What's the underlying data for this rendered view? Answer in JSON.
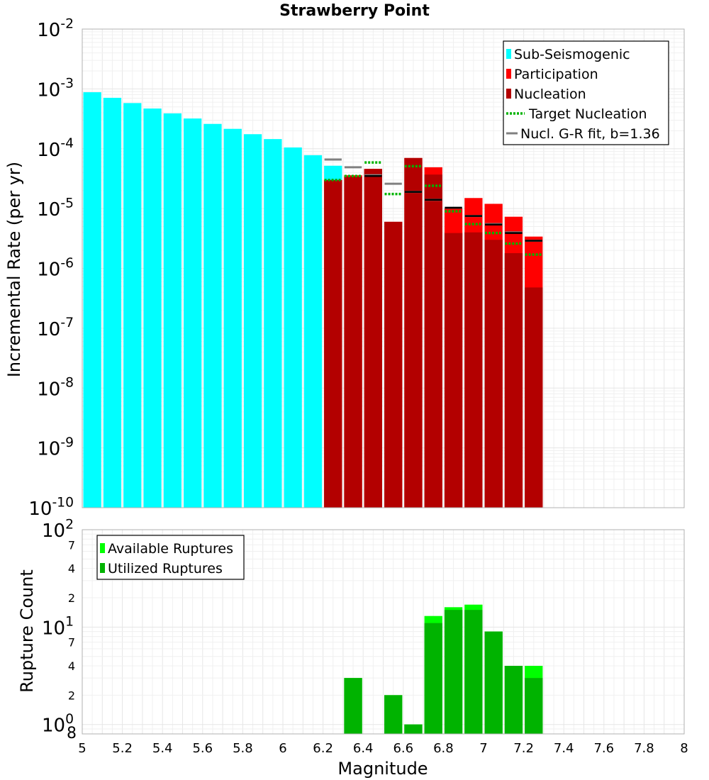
{
  "chart_data": [
    {
      "type": "bar",
      "title": "Strawberry Point",
      "xlabel": "",
      "ylabel": "Incremental Rate (per yr)",
      "yscale": "log",
      "ylim": [
        1e-10,
        0.01
      ],
      "xlim": [
        5,
        8
      ],
      "y_ticks": [
        {
          "base": "10",
          "exp": "-10"
        },
        {
          "base": "10",
          "exp": "-9"
        },
        {
          "base": "10",
          "exp": "-8"
        },
        {
          "base": "10",
          "exp": "-7"
        },
        {
          "base": "10",
          "exp": "-6"
        },
        {
          "base": "10",
          "exp": "-5"
        },
        {
          "base": "10",
          "exp": "-4"
        },
        {
          "base": "10",
          "exp": "-3"
        },
        {
          "base": "10",
          "exp": "-2"
        }
      ],
      "bin_width": 0.1,
      "colors": {
        "sub_seismogenic": "#00ffff",
        "participation": "#ff0000",
        "nucleation": "#b30000",
        "target_nucleation": "#00b300",
        "gr_fit": "#808080",
        "nucleation_marker": "#000000"
      },
      "legend": [
        {
          "label": "Sub-Seismogenic",
          "kind": "bar",
          "color": "#00ffff"
        },
        {
          "label": "Participation",
          "kind": "bar",
          "color": "#ff0000"
        },
        {
          "label": "Nucleation",
          "kind": "bar",
          "color": "#b30000"
        },
        {
          "label": "Target Nucleation",
          "kind": "dotted",
          "color": "#00b300"
        },
        {
          "label": "Nucl. G-R fit, b=1.36",
          "kind": "line",
          "color": "#808080"
        }
      ],
      "series": [
        {
          "name": "Sub-Seismogenic",
          "x": [
            5.05,
            5.15,
            5.25,
            5.35,
            5.45,
            5.55,
            5.65,
            5.75,
            5.85,
            5.95,
            6.05,
            6.15,
            6.25
          ],
          "values": [
            0.00088,
            0.00071,
            0.00058,
            0.00047,
            0.00039,
            0.00032,
            0.00026,
            0.000215,
            0.000175,
            0.000145,
            0.000105,
            7.8e-05,
            5.2e-05
          ]
        },
        {
          "name": "Participation",
          "x": [
            6.25,
            6.35,
            6.45,
            6.55,
            6.65,
            6.75,
            6.85,
            6.95,
            7.05,
            7.15,
            7.25
          ],
          "values": [
            3e-05,
            3.6e-05,
            4.6e-05,
            6e-06,
            7e-05,
            4.9e-05,
            1e-05,
            1.5e-05,
            1.2e-05,
            7.3e-06,
            3.4e-06
          ]
        },
        {
          "name": "Nucleation",
          "x": [
            6.25,
            6.35,
            6.45,
            6.55,
            6.65,
            6.75,
            6.85,
            6.95,
            7.05,
            7.15,
            7.25
          ],
          "values": [
            3e-05,
            3.4e-05,
            4.6e-05,
            6e-06,
            7e-05,
            3.7e-05,
            3.9e-06,
            4e-06,
            3e-06,
            1.8e-06,
            4.8e-07
          ]
        },
        {
          "name": "Target Nucleation",
          "x": [
            6.25,
            6.35,
            6.45,
            6.55,
            6.65,
            6.75,
            6.85,
            6.95,
            7.05,
            7.15,
            7.25
          ],
          "values": [
            3e-05,
            3.5e-05,
            5.9e-05,
            1.75e-05,
            5.1e-05,
            2.4e-05,
            9e-06,
            5.5e-06,
            3.9e-06,
            2.6e-06,
            1.7e-06
          ]
        },
        {
          "name": "Nucl. G-R fit, b=1.36",
          "x": [
            6.25,
            6.35,
            6.45,
            6.55,
            6.65,
            6.75,
            6.85,
            6.95,
            7.05,
            7.15,
            7.25
          ],
          "values": [
            6.6e-05,
            4.9e-05,
            3.6e-05,
            2.6e-05,
            1.9e-05,
            1.4e-05,
            1.03e-05,
            7.5e-06,
            5.5e-06,
            4e-06,
            2.9e-06
          ]
        },
        {
          "name": "Nucleation marker",
          "x": [
            6.45,
            6.65,
            6.75,
            6.85,
            6.95,
            7.05,
            7.15,
            7.25
          ],
          "values": [
            3.5e-05,
            1.9e-05,
            1.4e-05,
            1.03e-05,
            7.5e-06,
            5.4e-06,
            3.9e-06,
            2.9e-06
          ]
        }
      ]
    },
    {
      "type": "bar",
      "title": "",
      "xlabel": "Magnitude",
      "ylabel": "Rupture Count",
      "yscale": "log",
      "ylim": [
        0.8,
        100
      ],
      "xlim": [
        5,
        8
      ],
      "x_ticks": [
        "5",
        "5.2",
        "5.4",
        "5.6",
        "5.8",
        "6",
        "6.2",
        "6.4",
        "6.6",
        "6.8",
        "7",
        "7.2",
        "7.4",
        "7.6",
        "7.8",
        "8"
      ],
      "y_ticks": [
        {
          "value": 1,
          "base": "10",
          "exp": "0",
          "major": true
        },
        {
          "value": 2,
          "label": "2"
        },
        {
          "value": 4,
          "label": "4"
        },
        {
          "value": 7,
          "label": "7"
        },
        {
          "value": 10,
          "base": "10",
          "exp": "1",
          "major": true
        },
        {
          "value": 20,
          "label": "2"
        },
        {
          "value": 40,
          "label": "4"
        },
        {
          "value": 70,
          "label": "7"
        },
        {
          "value": 100,
          "base": "10",
          "exp": "2",
          "major": true
        }
      ],
      "bottom_label": "8",
      "bin_width": 0.1,
      "colors": {
        "available": "#00ff00",
        "utilized": "#00b300"
      },
      "legend": [
        {
          "label": "Available Ruptures",
          "kind": "bar",
          "color": "#00ff00"
        },
        {
          "label": "Utilized Ruptures",
          "kind": "bar",
          "color": "#00b300"
        }
      ],
      "series": [
        {
          "name": "Available Ruptures",
          "x": [
            6.35,
            6.55,
            6.65,
            6.75,
            6.85,
            6.95,
            7.05,
            7.15,
            7.25
          ],
          "values": [
            3,
            2,
            1,
            13,
            16,
            17,
            9,
            4,
            4
          ]
        },
        {
          "name": "Utilized Ruptures",
          "x": [
            6.35,
            6.55,
            6.65,
            6.75,
            6.85,
            6.95,
            7.05,
            7.15,
            7.25
          ],
          "values": [
            3,
            2,
            1,
            11,
            15,
            15,
            9,
            4,
            3
          ]
        }
      ]
    }
  ]
}
